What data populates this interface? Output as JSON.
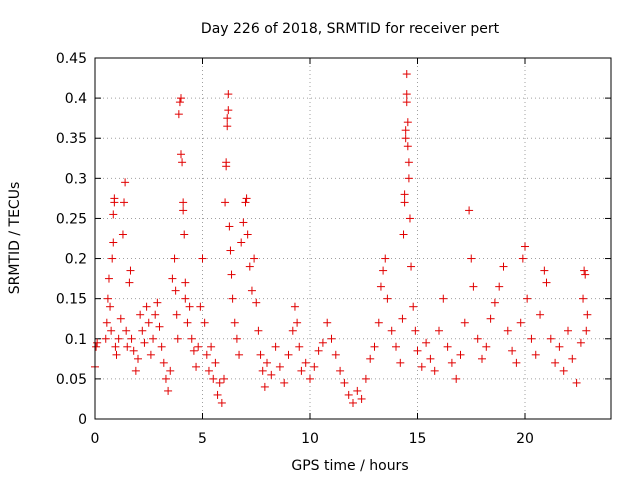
{
  "chart_data": {
    "type": "scatter",
    "title": "Day 226 of 2018, SRMTID for receiver pert",
    "xlabel": "GPS time / hours",
    "ylabel": "SRMTID / TECUs",
    "xlim": [
      0,
      24
    ],
    "ylim": [
      0,
      0.45
    ],
    "xticks": [
      0,
      5,
      10,
      15,
      20
    ],
    "xtick_labels": [
      "0",
      "5",
      "10",
      "15",
      "20"
    ],
    "yticks": [
      0,
      0.05,
      0.1,
      0.15,
      0.2,
      0.25,
      0.3,
      0.35,
      0.4,
      0.45
    ],
    "ytick_labels": [
      "0",
      "0.05",
      "0.1",
      "0.15",
      "0.2",
      "0.25",
      "0.3",
      "0.35",
      "0.4",
      "0.45"
    ],
    "grid": true,
    "marker": "+",
    "color": "#e00000",
    "series": [
      {
        "name": "SRMTID",
        "points": [
          [
            0.0,
            0.065
          ],
          [
            0.05,
            0.09
          ],
          [
            0.1,
            0.095
          ],
          [
            0.5,
            0.1
          ],
          [
            0.55,
            0.12
          ],
          [
            0.6,
            0.15
          ],
          [
            0.65,
            0.175
          ],
          [
            0.7,
            0.14
          ],
          [
            0.75,
            0.11
          ],
          [
            0.8,
            0.2
          ],
          [
            0.85,
            0.22
          ],
          [
            0.85,
            0.255
          ],
          [
            0.9,
            0.27
          ],
          [
            0.9,
            0.275
          ],
          [
            0.95,
            0.09
          ],
          [
            1.0,
            0.08
          ],
          [
            1.1,
            0.1
          ],
          [
            1.2,
            0.125
          ],
          [
            1.3,
            0.23
          ],
          [
            1.35,
            0.27
          ],
          [
            1.4,
            0.295
          ],
          [
            1.45,
            0.11
          ],
          [
            1.5,
            0.09
          ],
          [
            1.6,
            0.17
          ],
          [
            1.65,
            0.185
          ],
          [
            1.7,
            0.1
          ],
          [
            1.8,
            0.085
          ],
          [
            1.9,
            0.06
          ],
          [
            2.0,
            0.075
          ],
          [
            2.1,
            0.13
          ],
          [
            2.2,
            0.11
          ],
          [
            2.3,
            0.095
          ],
          [
            2.4,
            0.14
          ],
          [
            2.5,
            0.12
          ],
          [
            2.6,
            0.08
          ],
          [
            2.7,
            0.1
          ],
          [
            2.8,
            0.13
          ],
          [
            2.9,
            0.145
          ],
          [
            3.0,
            0.115
          ],
          [
            3.1,
            0.09
          ],
          [
            3.2,
            0.07
          ],
          [
            3.3,
            0.05
          ],
          [
            3.4,
            0.035
          ],
          [
            3.5,
            0.06
          ],
          [
            3.6,
            0.175
          ],
          [
            3.7,
            0.2
          ],
          [
            3.75,
            0.16
          ],
          [
            3.8,
            0.13
          ],
          [
            3.85,
            0.1
          ],
          [
            3.9,
            0.38
          ],
          [
            3.95,
            0.395
          ],
          [
            4.0,
            0.4
          ],
          [
            4.0,
            0.33
          ],
          [
            4.05,
            0.32
          ],
          [
            4.1,
            0.27
          ],
          [
            4.1,
            0.26
          ],
          [
            4.15,
            0.23
          ],
          [
            4.2,
            0.17
          ],
          [
            4.2,
            0.15
          ],
          [
            4.3,
            0.12
          ],
          [
            4.4,
            0.14
          ],
          [
            4.5,
            0.1
          ],
          [
            4.6,
            0.085
          ],
          [
            4.7,
            0.065
          ],
          [
            4.8,
            0.09
          ],
          [
            4.9,
            0.14
          ],
          [
            5.0,
            0.2
          ],
          [
            5.1,
            0.12
          ],
          [
            5.2,
            0.08
          ],
          [
            5.3,
            0.06
          ],
          [
            5.4,
            0.09
          ],
          [
            5.5,
            0.05
          ],
          [
            5.6,
            0.07
          ],
          [
            5.7,
            0.03
          ],
          [
            5.8,
            0.045
          ],
          [
            5.9,
            0.02
          ],
          [
            6.0,
            0.05
          ],
          [
            6.05,
            0.27
          ],
          [
            6.1,
            0.32
          ],
          [
            6.1,
            0.315
          ],
          [
            6.15,
            0.365
          ],
          [
            6.15,
            0.375
          ],
          [
            6.2,
            0.385
          ],
          [
            6.2,
            0.405
          ],
          [
            6.25,
            0.24
          ],
          [
            6.3,
            0.21
          ],
          [
            6.35,
            0.18
          ],
          [
            6.4,
            0.15
          ],
          [
            6.5,
            0.12
          ],
          [
            6.6,
            0.1
          ],
          [
            6.7,
            0.08
          ],
          [
            6.8,
            0.22
          ],
          [
            6.9,
            0.245
          ],
          [
            7.0,
            0.27
          ],
          [
            7.05,
            0.275
          ],
          [
            7.1,
            0.23
          ],
          [
            7.2,
            0.19
          ],
          [
            7.3,
            0.16
          ],
          [
            7.4,
            0.2
          ],
          [
            7.5,
            0.145
          ],
          [
            7.6,
            0.11
          ],
          [
            7.7,
            0.08
          ],
          [
            7.8,
            0.06
          ],
          [
            7.9,
            0.04
          ],
          [
            8.0,
            0.07
          ],
          [
            8.2,
            0.055
          ],
          [
            8.4,
            0.09
          ],
          [
            8.6,
            0.065
          ],
          [
            8.8,
            0.045
          ],
          [
            9.0,
            0.08
          ],
          [
            9.2,
            0.11
          ],
          [
            9.3,
            0.14
          ],
          [
            9.4,
            0.12
          ],
          [
            9.5,
            0.09
          ],
          [
            9.6,
            0.06
          ],
          [
            9.8,
            0.07
          ],
          [
            10.0,
            0.05
          ],
          [
            10.2,
            0.065
          ],
          [
            10.4,
            0.085
          ],
          [
            10.6,
            0.095
          ],
          [
            10.8,
            0.12
          ],
          [
            11.0,
            0.1
          ],
          [
            11.2,
            0.08
          ],
          [
            11.4,
            0.06
          ],
          [
            11.6,
            0.045
          ],
          [
            11.8,
            0.03
          ],
          [
            12.0,
            0.02
          ],
          [
            12.2,
            0.035
          ],
          [
            12.4,
            0.025
          ],
          [
            12.6,
            0.05
          ],
          [
            12.8,
            0.075
          ],
          [
            13.0,
            0.09
          ],
          [
            13.2,
            0.12
          ],
          [
            13.3,
            0.165
          ],
          [
            13.4,
            0.185
          ],
          [
            13.5,
            0.2
          ],
          [
            13.6,
            0.15
          ],
          [
            13.8,
            0.11
          ],
          [
            14.0,
            0.09
          ],
          [
            14.2,
            0.07
          ],
          [
            14.3,
            0.125
          ],
          [
            14.35,
            0.23
          ],
          [
            14.4,
            0.27
          ],
          [
            14.4,
            0.28
          ],
          [
            14.45,
            0.35
          ],
          [
            14.45,
            0.36
          ],
          [
            14.5,
            0.395
          ],
          [
            14.5,
            0.405
          ],
          [
            14.55,
            0.37
          ],
          [
            14.55,
            0.34
          ],
          [
            14.6,
            0.32
          ],
          [
            14.6,
            0.3
          ],
          [
            14.5,
            0.43
          ],
          [
            14.65,
            0.25
          ],
          [
            14.7,
            0.19
          ],
          [
            14.8,
            0.14
          ],
          [
            14.9,
            0.11
          ],
          [
            15.0,
            0.085
          ],
          [
            15.2,
            0.065
          ],
          [
            15.4,
            0.095
          ],
          [
            15.6,
            0.075
          ],
          [
            15.8,
            0.06
          ],
          [
            16.0,
            0.11
          ],
          [
            16.2,
            0.15
          ],
          [
            16.4,
            0.09
          ],
          [
            16.6,
            0.07
          ],
          [
            16.8,
            0.05
          ],
          [
            17.0,
            0.08
          ],
          [
            17.2,
            0.12
          ],
          [
            17.4,
            0.26
          ],
          [
            17.5,
            0.2
          ],
          [
            17.6,
            0.165
          ],
          [
            17.8,
            0.1
          ],
          [
            18.0,
            0.075
          ],
          [
            18.2,
            0.09
          ],
          [
            18.4,
            0.125
          ],
          [
            18.6,
            0.145
          ],
          [
            18.8,
            0.165
          ],
          [
            19.0,
            0.19
          ],
          [
            19.2,
            0.11
          ],
          [
            19.4,
            0.085
          ],
          [
            19.6,
            0.07
          ],
          [
            19.8,
            0.12
          ],
          [
            19.9,
            0.2
          ],
          [
            20.0,
            0.215
          ],
          [
            20.1,
            0.15
          ],
          [
            20.3,
            0.1
          ],
          [
            20.5,
            0.08
          ],
          [
            20.7,
            0.13
          ],
          [
            20.9,
            0.185
          ],
          [
            21.0,
            0.17
          ],
          [
            21.2,
            0.1
          ],
          [
            21.4,
            0.07
          ],
          [
            21.6,
            0.09
          ],
          [
            21.8,
            0.06
          ],
          [
            22.0,
            0.11
          ],
          [
            22.2,
            0.075
          ],
          [
            22.4,
            0.045
          ],
          [
            22.6,
            0.095
          ],
          [
            22.7,
            0.15
          ],
          [
            22.75,
            0.185
          ],
          [
            22.8,
            0.18
          ],
          [
            22.85,
            0.11
          ],
          [
            22.9,
            0.13
          ]
        ]
      }
    ]
  }
}
